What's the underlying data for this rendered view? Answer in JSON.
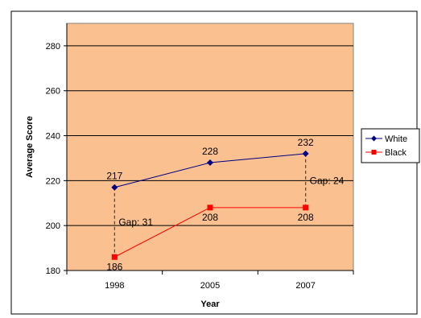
{
  "chart_data": {
    "type": "line",
    "title": "",
    "xlabel": "Year",
    "ylabel": "Average Score",
    "categories": [
      "1998",
      "2005",
      "2007"
    ],
    "ylim": [
      180,
      290
    ],
    "yticks": [
      180,
      200,
      220,
      240,
      260,
      280
    ],
    "grid": "horizontal",
    "legend_position": "right",
    "plot_background": "#fac090",
    "series": [
      {
        "name": "White",
        "values": [
          217,
          228,
          232
        ],
        "color": "#000080",
        "marker": "diamond",
        "labels": [
          "217",
          "228",
          "232"
        ]
      },
      {
        "name": "Black",
        "values": [
          186,
          208,
          208
        ],
        "color": "#ff0000",
        "marker": "square",
        "labels": [
          "186",
          "208",
          "208"
        ]
      }
    ],
    "annotations": [
      {
        "text": "Gap: 31",
        "category": "1998"
      },
      {
        "text": "Gap: 24",
        "category": "2007"
      }
    ]
  }
}
